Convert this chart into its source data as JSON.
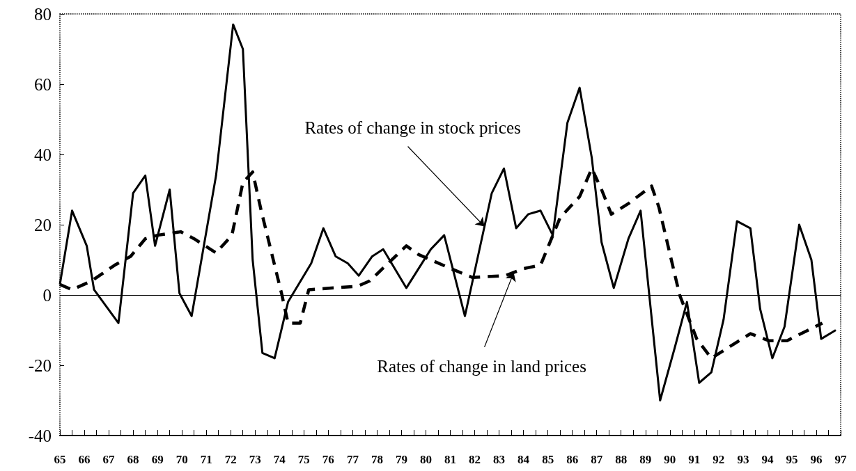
{
  "chart_data": {
    "type": "line",
    "xlim": [
      65,
      97
    ],
    "ylim": [
      -40,
      80
    ],
    "xticks": [
      65,
      {
        "value": 65.5,
        "label": null
      },
      66,
      {
        "value": 66.5,
        "label": null
      },
      67,
      {
        "value": 67.5,
        "label": null
      },
      68,
      {
        "value": 68.5,
        "label": null
      },
      69,
      {
        "value": 69.5,
        "label": null
      },
      70,
      {
        "value": 70.5,
        "label": null
      },
      71,
      {
        "value": 71.5,
        "label": null
      },
      72,
      {
        "value": 72.5,
        "label": null
      },
      73,
      {
        "value": 73.5,
        "label": null
      },
      74,
      {
        "value": 74.5,
        "label": null
      },
      75,
      {
        "value": 75.5,
        "label": null
      },
      76,
      {
        "value": 76.5,
        "label": null
      },
      77,
      {
        "value": 77.5,
        "label": null
      },
      78,
      {
        "value": 78.5,
        "label": null
      },
      79,
      {
        "value": 79.5,
        "label": null
      },
      80,
      {
        "value": 80.5,
        "label": null
      },
      81,
      {
        "value": 81.5,
        "label": null
      },
      82,
      {
        "value": 82.5,
        "label": null
      },
      83,
      {
        "value": 83.5,
        "label": null
      },
      84,
      {
        "value": 84.5,
        "label": null
      },
      85,
      {
        "value": 85.5,
        "label": null
      },
      86,
      {
        "value": 86.5,
        "label": null
      },
      87,
      {
        "value": 87.5,
        "label": null
      },
      88,
      {
        "value": 88.5,
        "label": null
      },
      89,
      {
        "value": 89.5,
        "label": null
      },
      90,
      {
        "value": 90.5,
        "label": null
      },
      91,
      {
        "value": 91.5,
        "label": null
      },
      92,
      {
        "value": 92.5,
        "label": null
      },
      93,
      {
        "value": 93.5,
        "label": null
      },
      94,
      {
        "value": 94.5,
        "label": null
      },
      95,
      {
        "value": 95.5,
        "label": null
      },
      96,
      {
        "value": 96.5,
        "label": null
      },
      97
    ],
    "yticks": [
      -40,
      -20,
      0,
      20,
      40,
      60,
      80
    ],
    "grid": false,
    "marker": "none",
    "ref_lines": [
      {
        "axis": "y",
        "value": 0,
        "color": "#000000",
        "line_style": "solid"
      }
    ],
    "annotations": [
      {
        "text": "Rates of change in stock prices",
        "x": 82.4,
        "y": 19.5
      },
      {
        "text": "Rates of change in land prices",
        "x": 83.6,
        "y": 6.4
      }
    ],
    "series": [
      {
        "color": "#000000",
        "line_style": "solid",
        "x": [
          65.0,
          65.5,
          66.1,
          66.4,
          67.4,
          68.0,
          68.5,
          68.9,
          69.5,
          69.9,
          70.4,
          71.4,
          72.1,
          72.5,
          72.9,
          73.3,
          73.8,
          74.35,
          75.3,
          75.8,
          76.3,
          76.8,
          77.25,
          77.8,
          78.25,
          79.2,
          80.2,
          80.75,
          81.6,
          82.7,
          83.2,
          83.7,
          84.2,
          84.7,
          85.2,
          85.8,
          86.3,
          86.8,
          87.2,
          87.7,
          88.3,
          88.8,
          89.6,
          90.2,
          90.7,
          91.2,
          91.7,
          92.2,
          92.75,
          93.3,
          93.7,
          94.2,
          94.7,
          95.3,
          95.8,
          96.2,
          96.8
        ],
        "values": [
          3,
          24,
          14,
          1.5,
          -8,
          29,
          34,
          14,
          30,
          0.5,
          -6,
          34,
          77,
          70,
          10,
          -16.5,
          -18,
          -2,
          9,
          19,
          11,
          9,
          5.5,
          11,
          13,
          2,
          13,
          17,
          -6,
          29,
          36,
          19,
          23,
          24,
          17,
          49,
          59,
          39,
          15,
          2,
          16,
          24,
          -30,
          -15,
          -2,
          -25,
          -22,
          -7,
          21,
          19,
          -4,
          -18,
          -9,
          20,
          10,
          -12.5,
          -10
        ]
      },
      {
        "color": "#000000",
        "line_style": "dashed",
        "x": [
          65.0,
          65.5,
          66.3,
          67.25,
          67.9,
          68.5,
          69.0,
          69.95,
          70.5,
          71.4,
          72.05,
          72.5,
          72.9,
          73.25,
          74.1,
          74.35,
          74.85,
          75.2,
          77.2,
          77.7,
          78.3,
          79.2,
          79.7,
          81.2,
          81.9,
          83.25,
          84.0,
          84.7,
          85.5,
          86.3,
          86.8,
          87.2,
          87.6,
          88.3,
          89.25,
          89.55,
          90.4,
          91.1,
          91.7,
          93.3,
          94.05,
          94.8,
          96.25
        ],
        "values": [
          3,
          1.5,
          4,
          8.5,
          11,
          16,
          17,
          18,
          16,
          12,
          17,
          32,
          35,
          24,
          0,
          -8,
          -8,
          1.5,
          2.5,
          4,
          8,
          14,
          11.5,
          7,
          5,
          5.5,
          7.5,
          8.5,
          22,
          28,
          36,
          30,
          23,
          26,
          31,
          25,
          0,
          -12.5,
          -18,
          -11,
          -13,
          -13,
          -8
        ]
      }
    ]
  }
}
